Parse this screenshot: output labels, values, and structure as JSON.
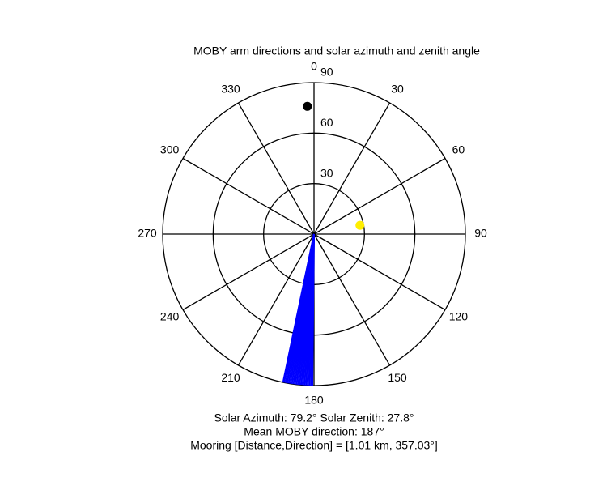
{
  "chart_data": {
    "type": "polar",
    "title": "MOBY arm directions and solar azimuth and zenith angle",
    "theta_zero": "top",
    "theta_direction": "clockwise",
    "theta_ticks": [
      0,
      30,
      60,
      90,
      120,
      150,
      180,
      210,
      240,
      270,
      300,
      330
    ],
    "rlim": [
      0,
      90
    ],
    "rticks": [
      30,
      60,
      90
    ],
    "lines": {
      "color": "#0000ff",
      "theta": [
        180.6,
        181.2,
        181.8,
        182.4,
        183.0,
        183.6,
        184.2,
        184.8,
        185.4,
        186.0,
        186.6,
        187.2,
        187.8,
        188.4,
        189.0,
        189.6,
        190.2,
        190.8,
        191.4,
        191.8
      ]
    },
    "points": [
      {
        "theta": 357.03,
        "r": 76,
        "color": "#000000"
      },
      {
        "theta": 79.2,
        "r": 27.8,
        "color": "#ffee00"
      }
    ],
    "annotations": [
      "Solar Azimuth: 79.2°   Solar Zenith: 27.8°",
      "Mean MOBY direction: 187°",
      "Mooring [Distance,Direction] = [1.01 km, 357.03°]"
    ]
  }
}
